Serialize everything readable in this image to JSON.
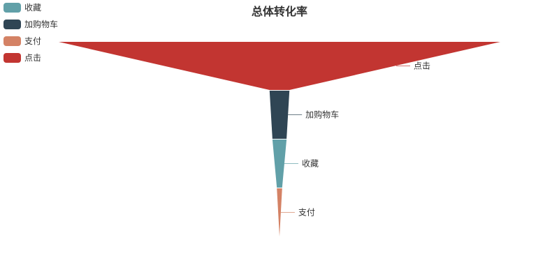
{
  "chart_data": {
    "type": "funnel",
    "title": "总体转化率",
    "legend": [
      {
        "name": "收藏",
        "color": "#61a0a8"
      },
      {
        "name": "加购物车",
        "color": "#2f4554"
      },
      {
        "name": "支付",
        "color": "#d48265"
      },
      {
        "name": "点击",
        "color": "#c23531"
      }
    ],
    "stages": [
      {
        "name": "点击",
        "value": 100,
        "color": "#c23531"
      },
      {
        "name": "加购物车",
        "value": 4.5,
        "color": "#2f4554"
      },
      {
        "name": "收藏",
        "value": 3.2,
        "color": "#61a0a8"
      },
      {
        "name": "支付",
        "value": 1.2,
        "color": "#d48265"
      }
    ],
    "legend_position": "top-left",
    "label_position": "right"
  }
}
